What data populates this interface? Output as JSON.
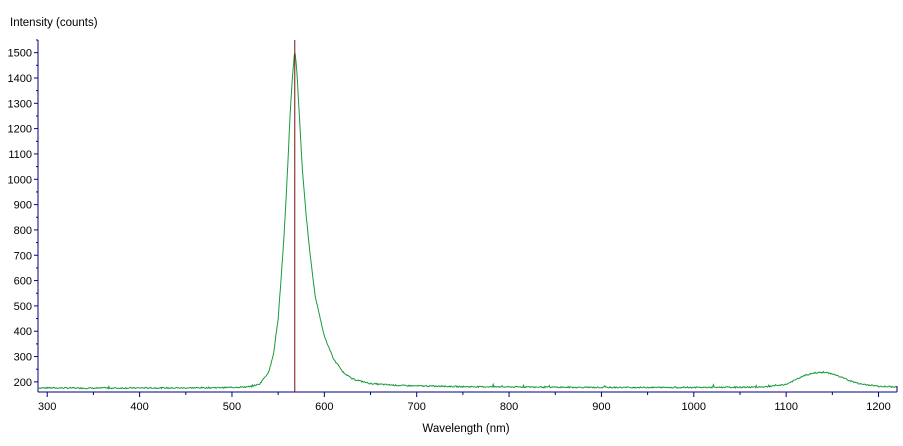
{
  "chart_data": {
    "type": "line",
    "ylabel": "Intensity (counts)",
    "xlabel": "Wavelength (nm)",
    "xlim": [
      290,
      1220
    ],
    "ylim": [
      160,
      1550
    ],
    "x_ticks": [
      300,
      400,
      500,
      600,
      700,
      800,
      900,
      1000,
      1100,
      1200
    ],
    "y_ticks": [
      200,
      300,
      400,
      500,
      600,
      700,
      800,
      900,
      1000,
      1100,
      1200,
      1300,
      1400,
      1500
    ],
    "grid": false,
    "colors": {
      "spectrum": "#1a9a3c",
      "marker": "#7a1010",
      "axis": "#000080"
    },
    "series": [
      {
        "x": [
          290,
          320,
          350,
          400,
          450,
          500,
          520,
          530,
          540,
          545,
          550,
          555,
          558,
          561,
          563,
          565,
          567,
          568,
          570,
          573,
          576,
          580,
          585,
          590,
          600,
          610,
          620,
          630,
          650,
          680,
          700,
          750,
          800,
          900,
          1000,
          1060,
          1080,
          1100,
          1110,
          1120,
          1130,
          1140,
          1150,
          1160,
          1170,
          1180,
          1200,
          1220
        ],
        "y": [
          176,
          176,
          175,
          176,
          176,
          178,
          181,
          192,
          240,
          310,
          450,
          700,
          880,
          1100,
          1260,
          1380,
          1470,
          1510,
          1440,
          1250,
          1050,
          870,
          690,
          540,
          380,
          290,
          240,
          212,
          193,
          186,
          184,
          181,
          180,
          178,
          178,
          179,
          181,
          190,
          208,
          225,
          235,
          238,
          232,
          218,
          203,
          192,
          183,
          180
        ]
      }
    ],
    "marker_x": 568
  }
}
